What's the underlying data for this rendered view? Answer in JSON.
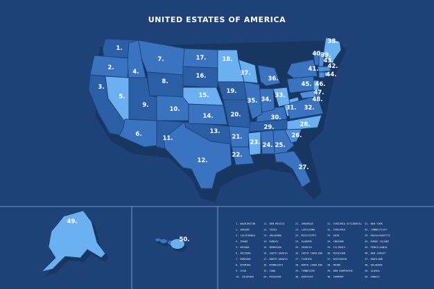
{
  "title": "UNITED ESTATES OF AMERICA",
  "colors": {
    "background": "#1e4278",
    "state_dark": "#2b5fa5",
    "state_mid": "#3a74c0",
    "state_light": "#4f8fdb",
    "state_bright": "#6bb0f0",
    "shadow": "#173660",
    "divider": "#8fb0dd"
  },
  "state_labels": [
    {
      "id": "1",
      "text": "1."
    },
    {
      "id": "2",
      "text": "2."
    },
    {
      "id": "3",
      "text": "3."
    },
    {
      "id": "4",
      "text": "4."
    },
    {
      "id": "5",
      "text": "5."
    },
    {
      "id": "6",
      "text": "6."
    },
    {
      "id": "7",
      "text": "7."
    },
    {
      "id": "8",
      "text": "8."
    },
    {
      "id": "9",
      "text": "9."
    },
    {
      "id": "10",
      "text": "10."
    },
    {
      "id": "11",
      "text": "11."
    },
    {
      "id": "12",
      "text": "12."
    },
    {
      "id": "13",
      "text": "13."
    },
    {
      "id": "14",
      "text": "14."
    },
    {
      "id": "15",
      "text": "15."
    },
    {
      "id": "16",
      "text": "16."
    },
    {
      "id": "17",
      "text": "17."
    },
    {
      "id": "18",
      "text": "18."
    },
    {
      "id": "19",
      "text": "19."
    },
    {
      "id": "20",
      "text": "20."
    },
    {
      "id": "21",
      "text": "21."
    },
    {
      "id": "22",
      "text": "22."
    },
    {
      "id": "23",
      "text": "23."
    },
    {
      "id": "24",
      "text": "24."
    },
    {
      "id": "25",
      "text": "25."
    },
    {
      "id": "26",
      "text": "26."
    },
    {
      "id": "27",
      "text": "27."
    },
    {
      "id": "28",
      "text": "28."
    },
    {
      "id": "29",
      "text": "29."
    },
    {
      "id": "30",
      "text": "30."
    },
    {
      "id": "31",
      "text": "31."
    },
    {
      "id": "32",
      "text": "32."
    },
    {
      "id": "33",
      "text": "33."
    },
    {
      "id": "34",
      "text": "34."
    },
    {
      "id": "35",
      "text": "35."
    },
    {
      "id": "36",
      "text": "36."
    },
    {
      "id": "37",
      "text": "37."
    },
    {
      "id": "38",
      "text": "38."
    },
    {
      "id": "39",
      "text": "39."
    },
    {
      "id": "40",
      "text": "40."
    },
    {
      "id": "41",
      "text": "41."
    },
    {
      "id": "42",
      "text": "42."
    },
    {
      "id": "43",
      "text": "43."
    },
    {
      "id": "44",
      "text": "44."
    },
    {
      "id": "45",
      "text": "45."
    },
    {
      "id": "46",
      "text": "46."
    },
    {
      "id": "47",
      "text": "47."
    },
    {
      "id": "48",
      "text": "48."
    },
    {
      "id": "49",
      "text": "49."
    },
    {
      "id": "50",
      "text": "50."
    }
  ],
  "legend": [
    "1. WASHINGTON",
    "2. OREGON",
    "3. CALIFORNIA",
    "4. IDAHO",
    "5. NEVADA",
    "6. ARIZONA",
    "7. MONTANA",
    "8. WYOMING",
    "9. UTAH",
    "10. COLORADO",
    "11. NEW MEXICO",
    "12. TEXAS",
    "13. OKLAHOMA",
    "14. KANSAS",
    "15. NEBRASKA",
    "16. SOUTH DAKOTA",
    "17. NORTH DAKOTA",
    "18. MINNESOTA",
    "19. IOWA",
    "20. MISSOURI",
    "21. ARKANSAS",
    "22. LOUISIANA",
    "23. MISSISIPPI",
    "24. ALABAMA",
    "25. GEORGIA",
    "26. SOUTH CAROLINA",
    "27. FLORIDA",
    "28. NORTH CAROLINA",
    "29. TENNESSEE",
    "30. KENTUCKY",
    "31. VIRGINIA OCCIDENTAL",
    "32. VIRGINIA",
    "33. OHIO",
    "34. INDIANA",
    "35. ILLINOIS",
    "36. MICHIGAN",
    "37. WISCONSIN",
    "38. MAINE",
    "39. NEW HAMPSHIRE",
    "40. VERMONT",
    "41. NEW YORK",
    "42. CONNECTICUT",
    "43. MASSACHUSETTS",
    "44. RHODE ISLAND",
    "45. PENSILVANIA",
    "46. NEW JERSEY",
    "47. MARYLAND",
    "48. DELAWARE",
    "49. ALASKA",
    "50. HAWAII"
  ]
}
